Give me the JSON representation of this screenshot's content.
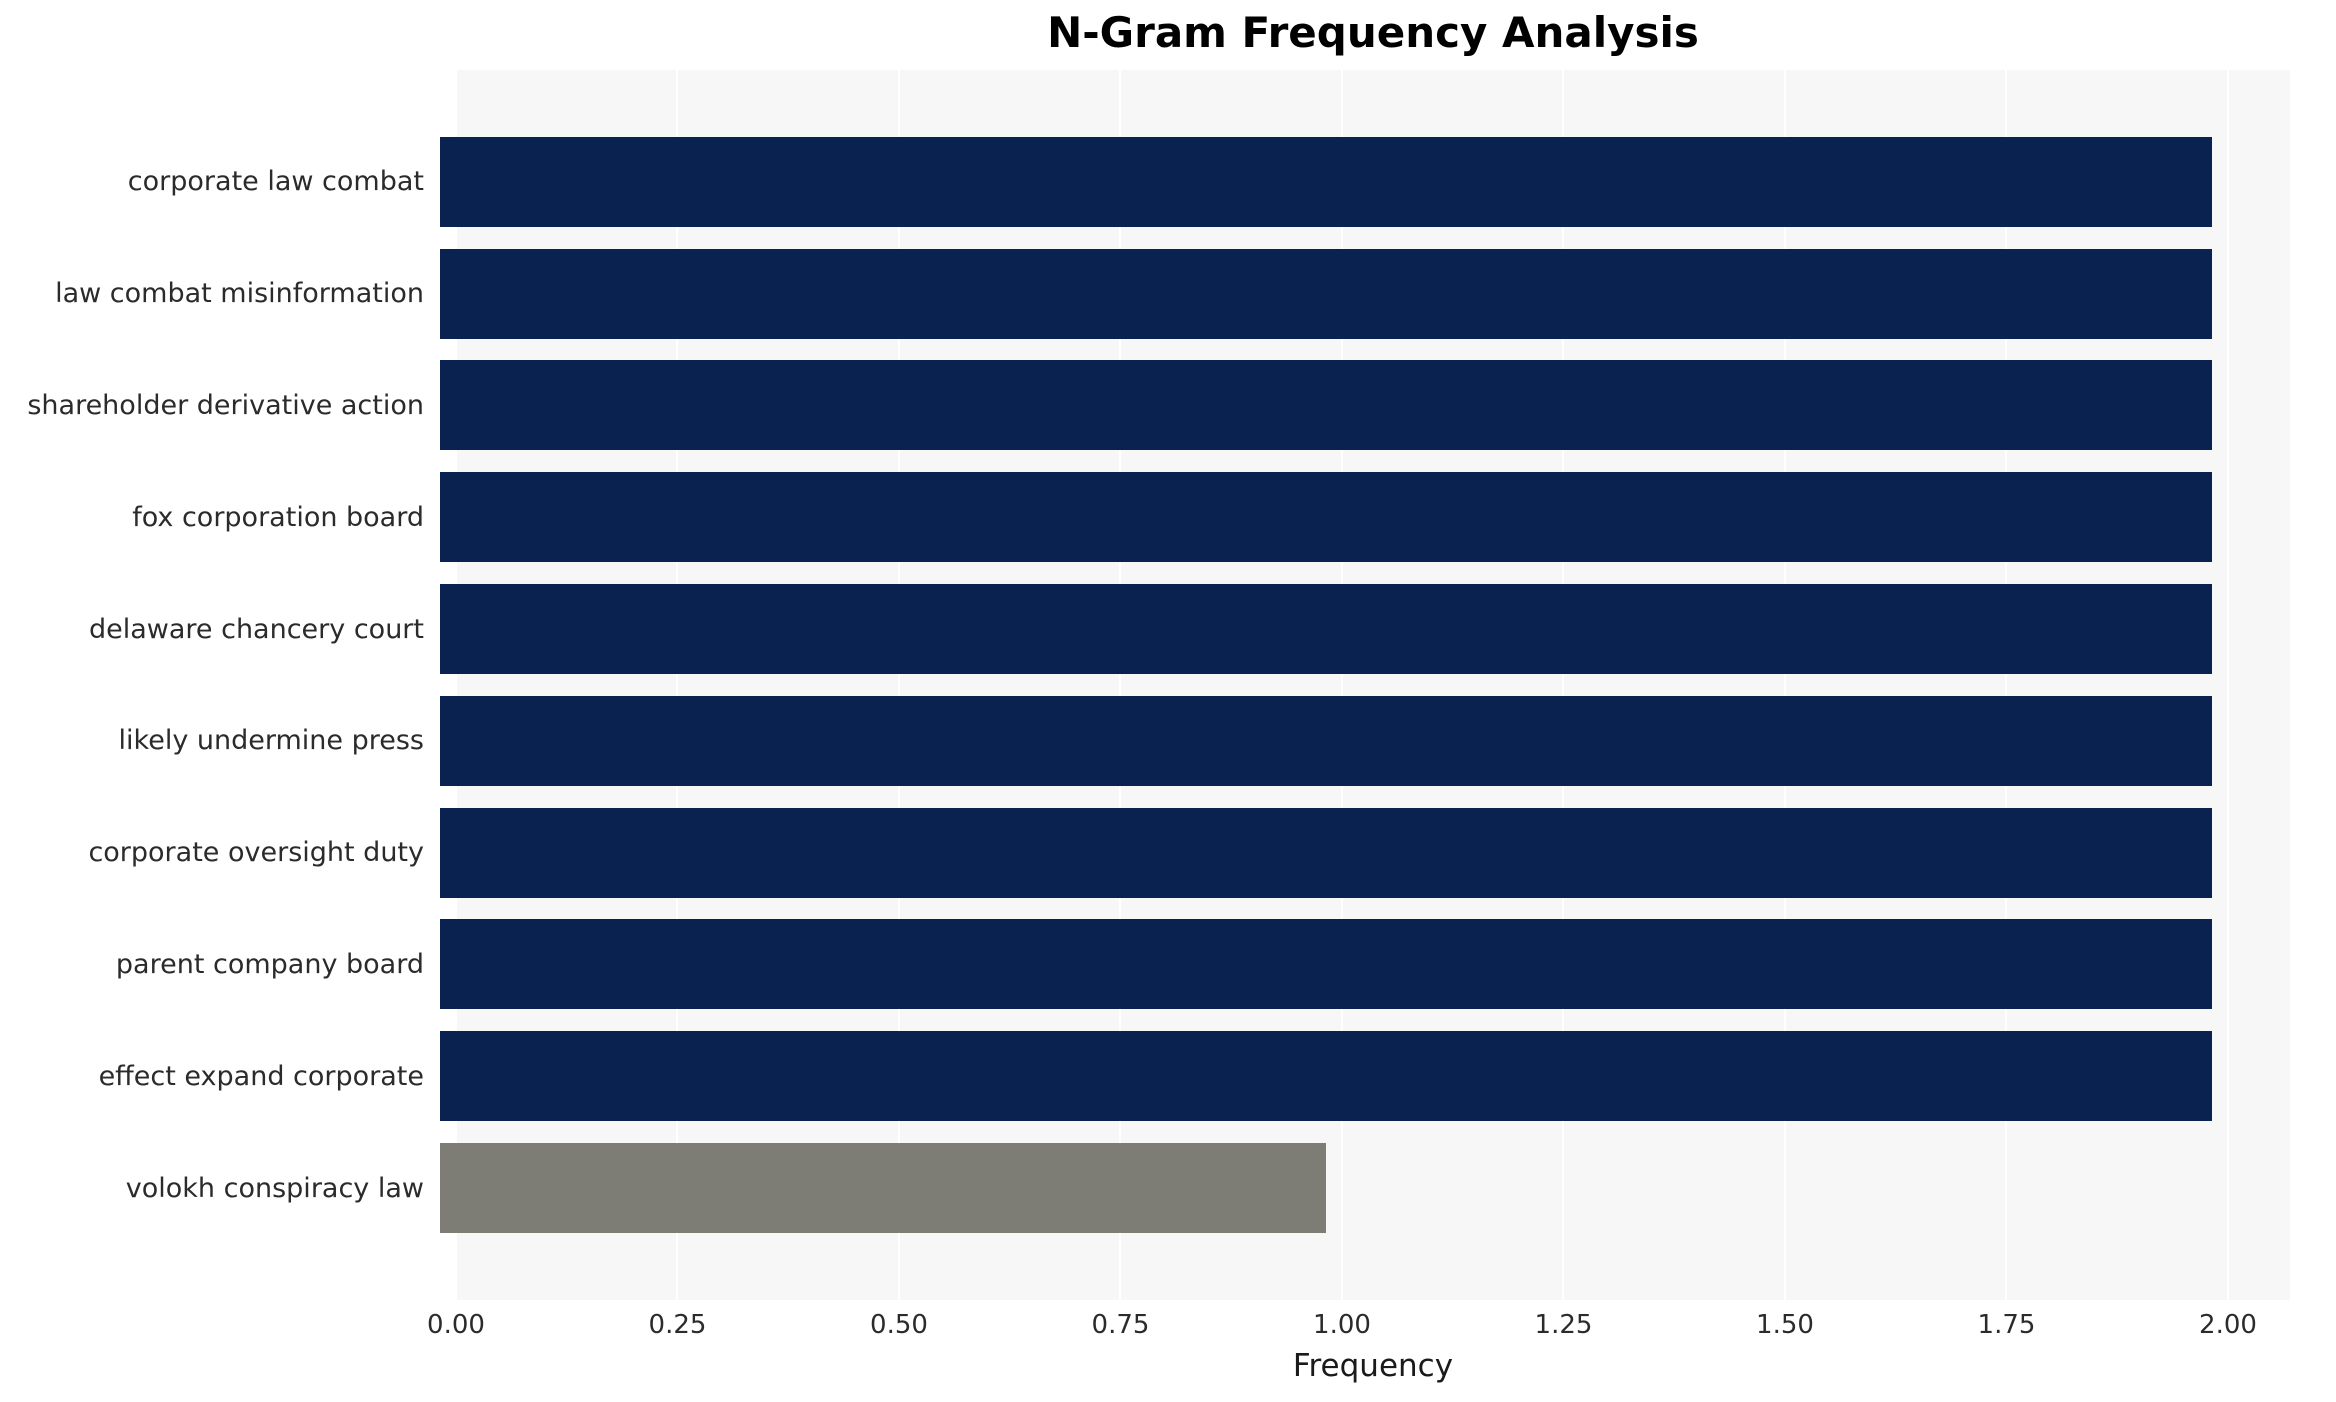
{
  "title": "N-Gram Frequency Analysis",
  "chart_data": {
    "type": "bar",
    "orientation": "horizontal",
    "title": "N-Gram Frequency Analysis",
    "xlabel": "Frequency",
    "ylabel": "",
    "categories": [
      "corporate law combat",
      "law combat misinformation",
      "shareholder derivative action",
      "fox corporation board",
      "delaware chancery court",
      "likely undermine press",
      "corporate oversight duty",
      "parent company board",
      "effect expand corporate",
      "volokh conspiracy law"
    ],
    "values": [
      2,
      2,
      2,
      2,
      2,
      2,
      2,
      2,
      2,
      1
    ],
    "bar_colors": [
      "#0a2250",
      "#0a2250",
      "#0a2250",
      "#0a2250",
      "#0a2250",
      "#0a2250",
      "#0a2250",
      "#0a2250",
      "#0a2250",
      "#7d7d75"
    ],
    "xlim": [
      0,
      2.07
    ],
    "xticks": [
      0,
      0.25,
      0.5,
      0.75,
      1,
      1.25,
      1.5,
      1.75,
      2
    ],
    "xtick_labels": [
      "0.00",
      "0.25",
      "0.50",
      "0.75",
      "1.00",
      "1.25",
      "1.50",
      "1.75",
      "2.00"
    ],
    "grid": true,
    "legend": "none",
    "plot_background": "#f7f7f7",
    "gridline_color": "#ffffff"
  }
}
